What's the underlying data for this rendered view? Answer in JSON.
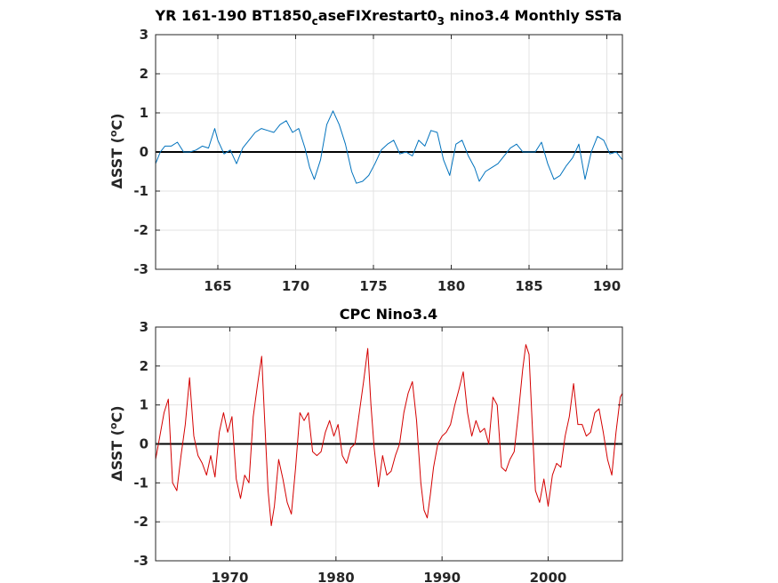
{
  "chart_data": [
    {
      "type": "line",
      "title": "YR 161-190 BT1850_caseFIXrestart0_3 nino3.4 Monthly SSTa",
      "title_parts": {
        "part1": "YR 161-190 BT1850",
        "sub1": "c",
        "part2": "aseFIXrestart0",
        "sub2": "3",
        "part3": " nino3.4 Monthly SSTa"
      },
      "ylabel": "ΔSST (°C)",
      "ylabel_parts": {
        "pre": "ΔSST (",
        "sup": "o",
        "post": "C)"
      },
      "xlabel": "",
      "xlim": [
        161,
        191
      ],
      "ylim": [
        -3,
        3
      ],
      "xticks": [
        165,
        170,
        175,
        180,
        185,
        190
      ],
      "yticks": [
        -3,
        -2,
        -1,
        0,
        1,
        2,
        3
      ],
      "grid": true,
      "zero_line": true,
      "series": [
        {
          "color": "#0072BD",
          "x": [
            161.0,
            161.3,
            161.6,
            162.0,
            162.4,
            162.8,
            163.2,
            163.6,
            164.0,
            164.4,
            164.8,
            165.0,
            165.4,
            165.8,
            166.2,
            166.6,
            167.0,
            167.4,
            167.8,
            168.2,
            168.6,
            169.0,
            169.4,
            169.8,
            170.2,
            170.6,
            170.9,
            171.2,
            171.6,
            172.0,
            172.4,
            172.8,
            173.2,
            173.6,
            173.9,
            174.3,
            174.7,
            175.1,
            175.5,
            175.9,
            176.3,
            176.7,
            177.1,
            177.5,
            177.9,
            178.3,
            178.7,
            179.1,
            179.5,
            179.9,
            180.3,
            180.7,
            181.1,
            181.5,
            181.8,
            182.2,
            182.6,
            183.0,
            183.4,
            183.8,
            184.2,
            184.6,
            185.0,
            185.4,
            185.8,
            186.2,
            186.6,
            187.0,
            187.4,
            187.8,
            188.2,
            188.6,
            189.0,
            189.4,
            189.8,
            190.2,
            190.6,
            191.0
          ],
          "values": [
            -0.3,
            0.0,
            0.15,
            0.15,
            0.25,
            0.0,
            0.0,
            0.05,
            0.15,
            0.1,
            0.6,
            0.3,
            -0.05,
            0.05,
            -0.3,
            0.1,
            0.3,
            0.5,
            0.6,
            0.55,
            0.5,
            0.7,
            0.8,
            0.5,
            0.6,
            0.1,
            -0.4,
            -0.7,
            -0.2,
            0.7,
            1.05,
            0.7,
            0.2,
            -0.5,
            -0.8,
            -0.75,
            -0.6,
            -0.3,
            0.05,
            0.2,
            0.3,
            -0.05,
            0.0,
            -0.1,
            0.3,
            0.15,
            0.55,
            0.5,
            -0.2,
            -0.6,
            0.2,
            0.3,
            -0.1,
            -0.4,
            -0.75,
            -0.5,
            -0.4,
            -0.3,
            -0.1,
            0.1,
            0.2,
            0.0,
            0.0,
            0.0,
            0.25,
            -0.3,
            -0.7,
            -0.6,
            -0.35,
            -0.15,
            0.2,
            -0.7,
            0.0,
            0.4,
            0.3,
            -0.05,
            0.0,
            -0.2
          ]
        }
      ]
    },
    {
      "type": "line",
      "title": "CPC Nino3.4",
      "ylabel": "ΔSST (°C)",
      "ylabel_parts": {
        "pre": "ΔSST (",
        "sup": "o",
        "post": "C)"
      },
      "xlabel": "",
      "xlim": [
        1963,
        2007
      ],
      "ylim": [
        -3,
        3
      ],
      "xticks": [
        1970,
        1980,
        1990,
        2000
      ],
      "yticks": [
        -3,
        -2,
        -1,
        0,
        1,
        2,
        3
      ],
      "grid": true,
      "zero_line": true,
      "series": [
        {
          "color": "#D40000",
          "x": [
            1963.0,
            1963.4,
            1963.8,
            1964.2,
            1964.6,
            1965.0,
            1965.4,
            1965.8,
            1966.2,
            1966.6,
            1967.0,
            1967.4,
            1967.8,
            1968.2,
            1968.6,
            1969.0,
            1969.4,
            1969.8,
            1970.2,
            1970.6,
            1971.0,
            1971.4,
            1971.8,
            1972.2,
            1972.6,
            1973.0,
            1973.3,
            1973.6,
            1973.9,
            1974.2,
            1974.6,
            1975.0,
            1975.4,
            1975.8,
            1976.2,
            1976.6,
            1977.0,
            1977.4,
            1977.8,
            1978.2,
            1978.6,
            1979.0,
            1979.4,
            1979.8,
            1980.2,
            1980.6,
            1981.0,
            1981.4,
            1981.8,
            1982.2,
            1982.6,
            1983.0,
            1983.3,
            1983.6,
            1984.0,
            1984.4,
            1984.8,
            1985.2,
            1985.6,
            1986.0,
            1986.4,
            1986.8,
            1987.2,
            1987.6,
            1988.0,
            1988.3,
            1988.6,
            1988.9,
            1989.2,
            1989.6,
            1990.0,
            1990.4,
            1990.8,
            1991.2,
            1991.6,
            1992.0,
            1992.4,
            1992.8,
            1993.2,
            1993.6,
            1994.0,
            1994.4,
            1994.8,
            1995.2,
            1995.6,
            1996.0,
            1996.4,
            1996.8,
            1997.2,
            1997.6,
            1997.9,
            1998.2,
            1998.5,
            1998.8,
            1999.2,
            1999.6,
            2000.0,
            2000.4,
            2000.8,
            2001.2,
            2001.6,
            2002.0,
            2002.4,
            2002.8,
            2003.2,
            2003.6,
            2004.0,
            2004.4,
            2004.8,
            2005.2,
            2005.6,
            2006.0,
            2006.4,
            2006.8,
            2007.0
          ],
          "values": [
            -0.4,
            0.2,
            0.8,
            1.15,
            -1.0,
            -1.2,
            -0.3,
            0.5,
            1.7,
            0.2,
            -0.3,
            -0.5,
            -0.8,
            -0.3,
            -0.85,
            0.3,
            0.8,
            0.3,
            0.7,
            -0.9,
            -1.4,
            -0.8,
            -1.0,
            0.7,
            1.5,
            2.25,
            0.5,
            -1.2,
            -2.1,
            -1.6,
            -0.4,
            -0.9,
            -1.5,
            -1.8,
            -0.6,
            0.8,
            0.6,
            0.8,
            -0.2,
            -0.3,
            -0.2,
            0.3,
            0.6,
            0.2,
            0.5,
            -0.3,
            -0.5,
            -0.1,
            0.0,
            0.8,
            1.6,
            2.45,
            1.0,
            -0.1,
            -1.1,
            -0.3,
            -0.8,
            -0.7,
            -0.3,
            0.0,
            0.8,
            1.3,
            1.6,
            0.6,
            -1.0,
            -1.7,
            -1.9,
            -1.3,
            -0.6,
            0.0,
            0.2,
            0.3,
            0.5,
            1.0,
            1.4,
            1.85,
            0.8,
            0.2,
            0.6,
            0.3,
            0.4,
            0.0,
            1.2,
            1.0,
            -0.6,
            -0.7,
            -0.4,
            -0.2,
            0.8,
            1.9,
            2.55,
            2.3,
            0.5,
            -1.2,
            -1.5,
            -0.9,
            -1.6,
            -0.8,
            -0.5,
            -0.6,
            0.2,
            0.7,
            1.55,
            0.5,
            0.5,
            0.2,
            0.3,
            0.8,
            0.9,
            0.3,
            -0.4,
            -0.8,
            0.3,
            1.2,
            1.3
          ]
        }
      ]
    }
  ]
}
